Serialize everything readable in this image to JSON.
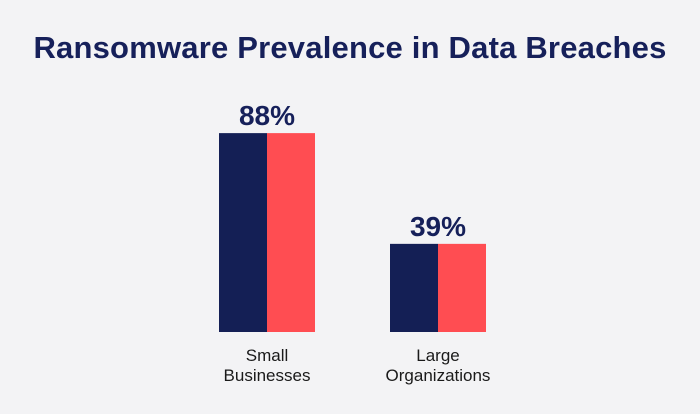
{
  "title": "Ransomware Prevalence in Data Breaches",
  "colors": {
    "bar_left": "#141f55",
    "bar_right": "#ff4d52",
    "text_dark": "#16205a",
    "text_label": "#1a1a1a",
    "background": "#f3f3f5"
  },
  "chart_data": {
    "type": "bar",
    "title": "Ransomware Prevalence in Data Breaches",
    "categories": [
      {
        "lines": [
          "Small",
          "Businesses"
        ],
        "name": "Small Businesses"
      },
      {
        "lines": [
          "Large",
          "Organizations"
        ],
        "name": "Large Organizations"
      }
    ],
    "values": [
      88,
      39
    ],
    "value_labels": [
      "88%",
      "39%"
    ],
    "unit": "%",
    "xlabel": "",
    "ylabel": "",
    "ylim": [
      0,
      100
    ],
    "grid": false,
    "legend": "none"
  }
}
